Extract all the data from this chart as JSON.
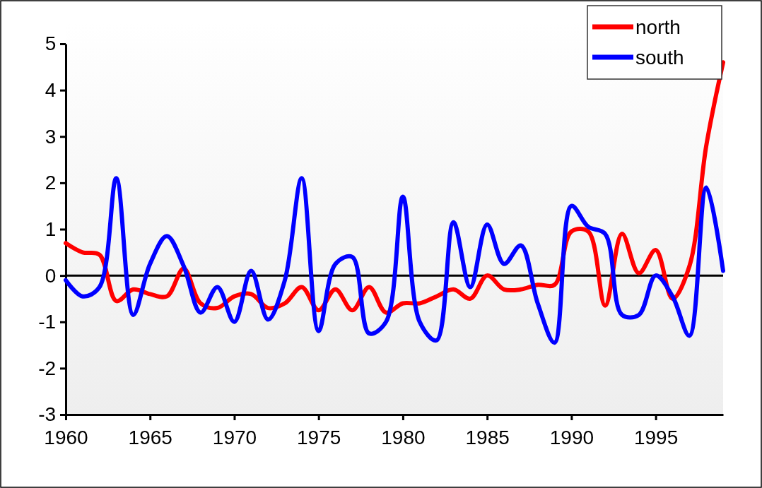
{
  "chart_data": {
    "type": "line",
    "x": [
      1960,
      1961,
      1962,
      1963,
      1964,
      1965,
      1966,
      1967,
      1968,
      1969,
      1970,
      1971,
      1972,
      1973,
      1974,
      1975,
      1976,
      1977,
      1978,
      1979,
      1980,
      1981,
      1982,
      1983,
      1984,
      1985,
      1986,
      1987,
      1988,
      1989,
      1990,
      1991,
      1992,
      1993,
      1994,
      1995,
      1996,
      1997,
      1998,
      1999
    ],
    "series": [
      {
        "name": "north",
        "color": "#ff0000",
        "values": [
          0.7,
          0.5,
          0.45,
          -0.55,
          -0.3,
          -0.4,
          -0.45,
          0.15,
          -0.6,
          -0.7,
          -0.45,
          -0.4,
          -0.7,
          -0.6,
          -0.25,
          -0.75,
          -0.3,
          -0.75,
          -0.25,
          -0.8,
          -0.6,
          -0.6,
          -0.45,
          -0.3,
          -0.5,
          0.0,
          -0.3,
          -0.3,
          -0.2,
          -0.2,
          0.95,
          0.95,
          -0.65,
          0.9,
          0.05,
          0.55,
          -0.5,
          0.2,
          2.8,
          4.6
        ]
      },
      {
        "name": "south",
        "color": "#0000ff",
        "values": [
          -0.1,
          -0.45,
          -0.25,
          2.1,
          -0.85,
          0.25,
          0.85,
          0.2,
          -0.8,
          -0.25,
          -1.0,
          0.1,
          -0.95,
          -0.1,
          2.1,
          -1.2,
          0.25,
          0.4,
          -1.25,
          -1.0,
          1.7,
          -1.0,
          -1.4,
          1.15,
          -0.25,
          1.1,
          0.25,
          0.65,
          -0.6,
          -1.45,
          1.5,
          1.05,
          0.9,
          -0.85,
          -0.85,
          0.0,
          -0.45,
          -1.3,
          1.9,
          0.1
        ]
      }
    ],
    "xlim": [
      1960,
      1999
    ],
    "xticks": [
      1960,
      1965,
      1970,
      1975,
      1980,
      1985,
      1990,
      1995
    ],
    "ylim": [
      -3,
      5
    ],
    "yticks": [
      -3,
      -2,
      -1,
      0,
      1,
      2,
      3,
      4,
      5
    ],
    "ref_lines": [
      {
        "axis": "y",
        "value": 0,
        "color": "#000000"
      }
    ],
    "grid": false,
    "legend": "top right",
    "marker": "none",
    "line_style": "solid"
  }
}
